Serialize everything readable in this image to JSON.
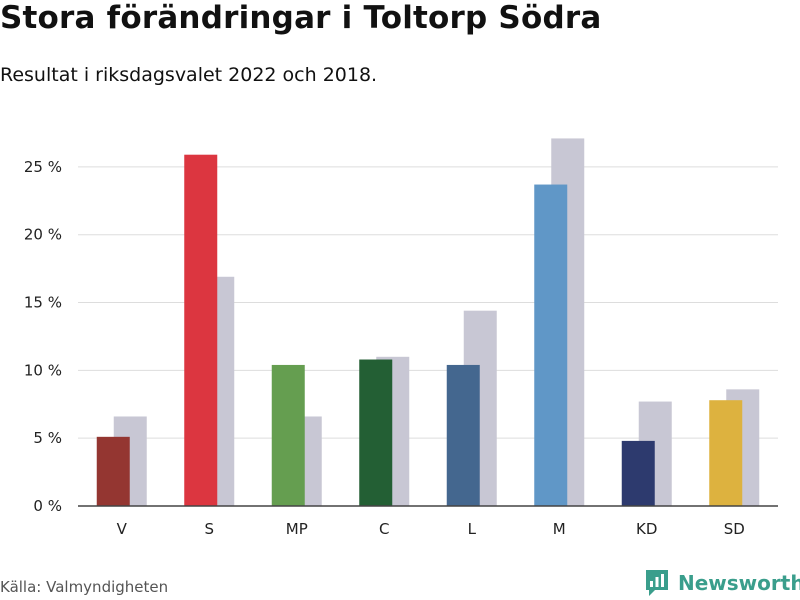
{
  "header": {
    "title": "Stora förändringar i Toltorp Södra",
    "subtitle": "Resultat i riksdagsvalet 2022 och 2018."
  },
  "footer": {
    "source": "Källa: Valmyndigheten",
    "brand": "Newsworthy"
  },
  "colors": {
    "previous_year": "#c8c7d4",
    "gridline": "#dddddd",
    "axis": "#444444",
    "brand": "#3a9e8c"
  },
  "icons": {
    "brand_logo": "bar-chart-speech-bubble-icon"
  },
  "chart_data": {
    "type": "bar",
    "categories": [
      "V",
      "S",
      "MP",
      "C",
      "L",
      "M",
      "KD",
      "SD"
    ],
    "series": [
      {
        "year": "2022",
        "values": [
          5.1,
          25.9,
          10.4,
          10.8,
          10.4,
          23.7,
          4.8,
          7.8
        ],
        "colors": [
          "#943631",
          "#dc3640",
          "#659e50",
          "#235f34",
          "#44678f",
          "#6097c7",
          "#2d3a6e",
          "#ddb23f"
        ]
      },
      {
        "year": "2018",
        "values": [
          6.6,
          16.9,
          6.6,
          11.0,
          14.4,
          27.1,
          7.7,
          8.6
        ],
        "color": "#c8c7d4"
      }
    ],
    "ylim": [
      0,
      27.5
    ],
    "yticks": [
      0,
      5,
      10,
      15,
      20,
      25
    ],
    "ytick_labels": [
      "0 %",
      "5 %",
      "10 %",
      "15 %",
      "20 %",
      "25 %"
    ],
    "grid": true,
    "legend": "none"
  }
}
